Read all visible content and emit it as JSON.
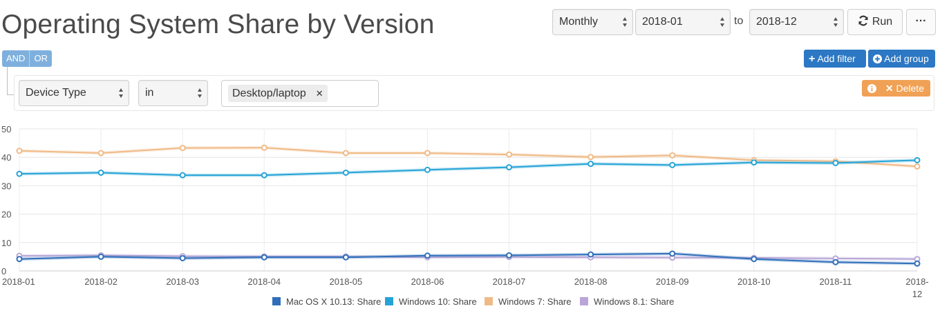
{
  "header": {
    "title": "Operating System Share by Version",
    "period": "Monthly",
    "start": "2018-01",
    "to_label": "to",
    "end": "2018-12",
    "run_label": "Run",
    "more_label": "···"
  },
  "filters": {
    "and_label": "AND",
    "or_label": "OR",
    "add_filter_label": "Add filter",
    "add_group_label": "Add group",
    "field": "Device Type",
    "operator": "in",
    "value": "Desktop/laptop",
    "delete_label": "Delete"
  },
  "colors": {
    "accent_blue": "#2c78c4",
    "delete_orange": "#f0a155"
  },
  "chart_data": {
    "type": "line",
    "x": [
      "2018-01",
      "2018-02",
      "2018-03",
      "2018-04",
      "2018-05",
      "2018-06",
      "2018-07",
      "2018-08",
      "2018-09",
      "2018-10",
      "2018-11",
      "2018-12"
    ],
    "x_tick_labels": [
      "2018-01",
      "2018-02",
      "2018-03",
      "2018-04",
      "2018-05",
      "2018-06",
      "2018-07",
      "2018-08",
      "2018-09",
      "2018-10",
      "2018-11",
      [
        "2018-",
        "12"
      ]
    ],
    "ylim": [
      0,
      50
    ],
    "yticks": [
      0,
      10,
      20,
      30,
      40,
      50
    ],
    "grid": true,
    "legend_position": "bottom",
    "series": [
      {
        "name": "Mac OS X 10.13: Share",
        "color": "#2f6fba",
        "values": [
          4.2,
          5.0,
          4.5,
          4.8,
          4.8,
          5.4,
          5.5,
          5.8,
          6.1,
          4.2,
          3.1,
          2.6
        ]
      },
      {
        "name": "Windows 10: Share",
        "color": "#25a3d6",
        "values": [
          34.2,
          34.6,
          33.7,
          33.7,
          34.6,
          35.6,
          36.5,
          37.7,
          37.3,
          38.2,
          38.0,
          39.0
        ]
      },
      {
        "name": "Windows 7: Share",
        "color": "#f0ba86",
        "values": [
          42.3,
          41.5,
          43.3,
          43.4,
          41.5,
          41.5,
          41.0,
          40.1,
          40.7,
          39.0,
          38.6,
          36.8
        ]
      },
      {
        "name": "Windows 8.1: Share",
        "color": "#b9a6d6",
        "values": [
          5.3,
          5.5,
          5.2,
          5.1,
          5.1,
          4.8,
          4.9,
          4.8,
          4.7,
          4.6,
          4.4,
          4.2
        ]
      }
    ]
  }
}
